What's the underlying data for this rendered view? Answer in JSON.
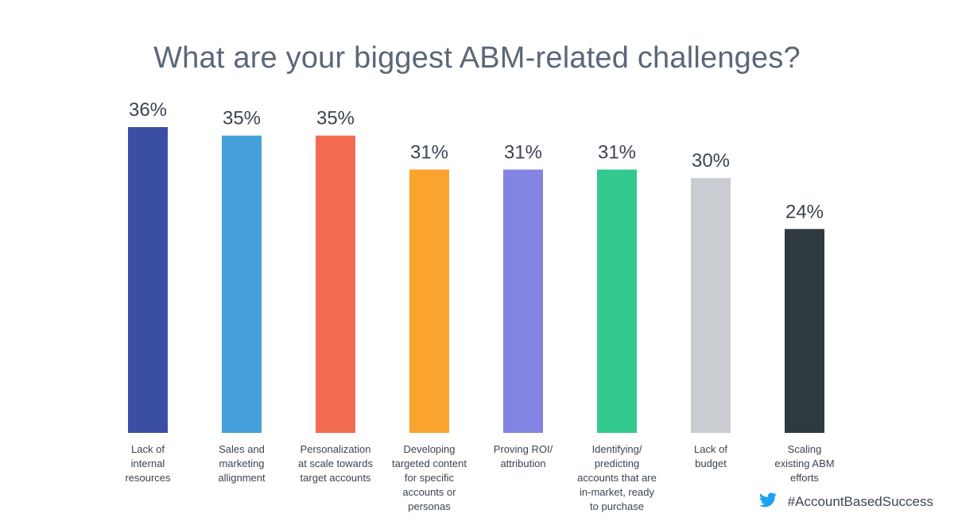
{
  "chart_data": {
    "type": "bar",
    "title": "What are your biggest ABM-related challenges?",
    "categories": [
      [
        "Lack of",
        "internal",
        "resources"
      ],
      [
        "Sales and",
        "marketing",
        "allignment"
      ],
      [
        "Personalization",
        "at scale towards",
        "target accounts"
      ],
      [
        "Developing",
        "targeted content",
        "for specific",
        "accounts or",
        "personas"
      ],
      [
        "Proving ROI/",
        "attribution"
      ],
      [
        "Identifying/",
        "predicting",
        "accounts that are",
        "in-market, ready",
        "to purchase"
      ],
      [
        "Lack of",
        "budget"
      ],
      [
        "Scaling",
        "existing ABM",
        "efforts"
      ]
    ],
    "values": [
      36,
      35,
      35,
      31,
      31,
      31,
      30,
      24
    ],
    "value_labels": [
      "36%",
      "35%",
      "35%",
      "31%",
      "31%",
      "31%",
      "30%",
      "24%"
    ],
    "colors": [
      "#3a4fa3",
      "#459fdb",
      "#f26c52",
      "#fba32f",
      "#8283e3",
      "#34c98e",
      "#c9ccd0",
      "#2f3940"
    ],
    "xlabel": "",
    "ylabel": "",
    "ylim": [
      0,
      36
    ],
    "grid": false,
    "legend": "none"
  },
  "footer": {
    "hashtag": "#AccountBasedSuccess",
    "icon": "twitter-bird-icon",
    "icon_color": "#1da1f2"
  }
}
